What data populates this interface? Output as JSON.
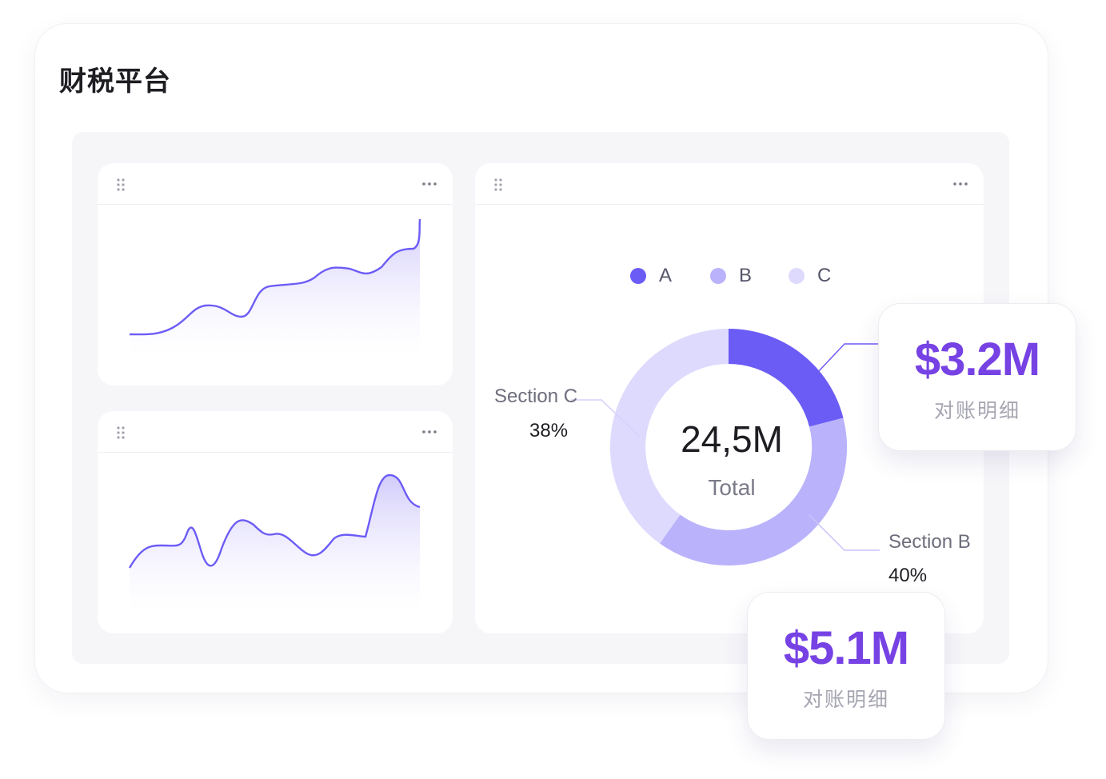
{
  "app": {
    "title": "财税平台"
  },
  "colors": {
    "accent": "#6c5cf6",
    "section_a": "#6c5cf6",
    "section_b": "#bab3fb",
    "section_c": "#dedafd",
    "value_purple": "#7642e4"
  },
  "icons": {
    "drag": "drag-handle-icon",
    "more": "more-horizontal-icon"
  },
  "charts": {
    "area_top": {
      "values": [
        0.0,
        0.04,
        0.25,
        0.14,
        0.44,
        0.55,
        0.6,
        0.72,
        1.0
      ]
    },
    "area_bottom": {
      "values": [
        0.55,
        0.8,
        0.38,
        0.78,
        0.5,
        0.62,
        0.55,
        0.95,
        0.7
      ]
    }
  },
  "donut": {
    "legend": [
      {
        "label": "A",
        "color": "#6c5cf6"
      },
      {
        "label": "B",
        "color": "#bab3fb"
      },
      {
        "label": "C",
        "color": "#dedafd"
      }
    ],
    "total_value": "24,5M",
    "total_label": "Total",
    "sections": [
      {
        "name": "Section C",
        "percent": "38%"
      },
      {
        "name": "Section B",
        "percent": "40%"
      }
    ]
  },
  "float_cards": [
    {
      "value": "$3.2M",
      "label": "对账明细"
    },
    {
      "value": "$5.1M",
      "label": "对账明细"
    }
  ]
}
